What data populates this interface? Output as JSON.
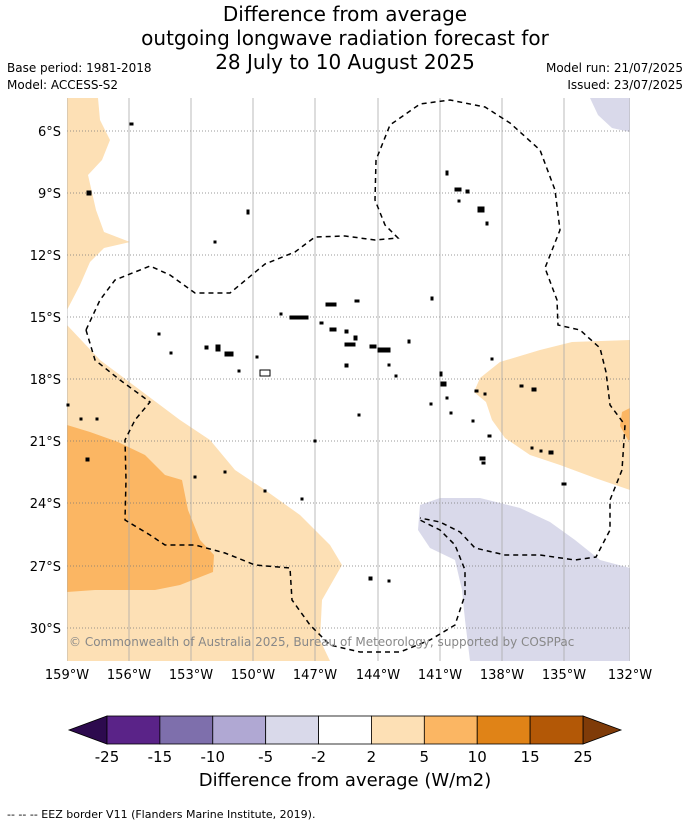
{
  "title": {
    "line1": "Difference from average",
    "line2": "outgoing longwave radiation forecast for",
    "line3": "28 July to 10 August 2025"
  },
  "meta": {
    "base_period": "Base period: 1981-2018",
    "model": "Model: ACCESS-S2",
    "model_run": "Model run: 21/07/2025",
    "issued": "Issued: 23/07/2025"
  },
  "axes": {
    "lat_labels": [
      "6°S",
      "9°S",
      "12°S",
      "15°S",
      "18°S",
      "21°S",
      "24°S",
      "27°S",
      "30°S"
    ],
    "lon_labels": [
      "159°W",
      "156°W",
      "153°W",
      "150°W",
      "147°W",
      "144°W",
      "141°W",
      "138°W",
      "135°W",
      "132°W"
    ]
  },
  "copyright": "© Commonwealth of Australia 2025, Bureau of Meteorology, supported by COSPPac",
  "colorbar": {
    "ticks": [
      "-25",
      "-15",
      "-10",
      "-5",
      "-2",
      "2",
      "5",
      "10",
      "15",
      "25"
    ],
    "colors": [
      "#5a2388",
      "#7e6fac",
      "#b0a8d3",
      "#d9d9ea",
      "#ffffff",
      "#fde0b5",
      "#fbb663",
      "#e08317",
      "#b35806"
    ],
    "low_extend_color": "#2d0a4e",
    "high_extend_color": "#7f3b08",
    "label": "Difference from average (W/m2)"
  },
  "legend": {
    "eez": "-- -- -- EEZ border V11 (Flanders Marine Institute, 2019)."
  }
}
